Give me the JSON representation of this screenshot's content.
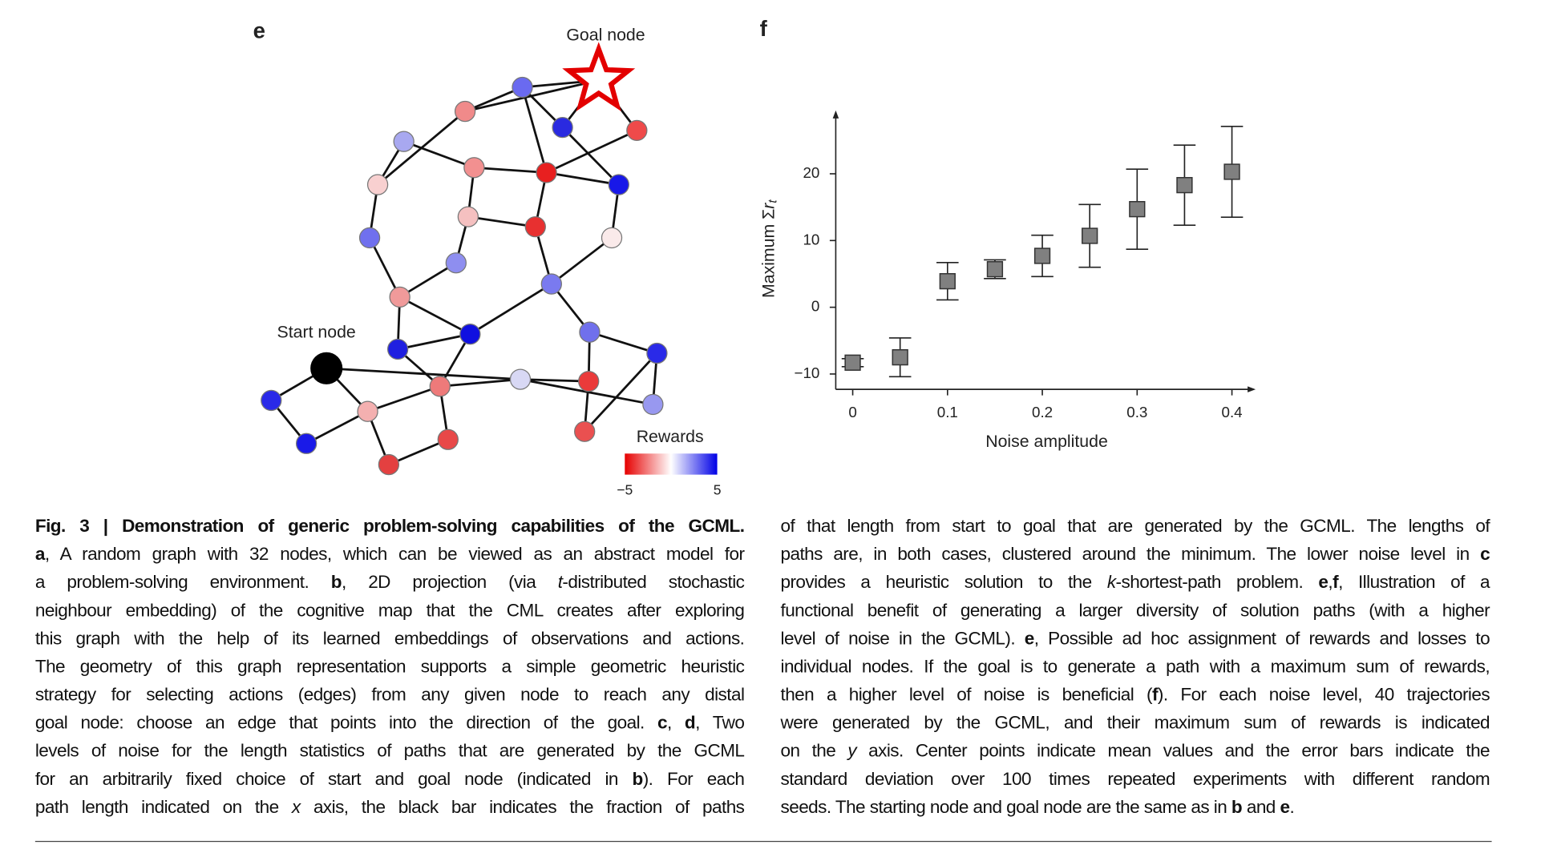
{
  "panel_e": {
    "label": "e",
    "goal_label": "Goal node",
    "start_label": "Start node",
    "colorbar": {
      "title": "Rewards",
      "clim": [
        -5,
        5
      ],
      "ticks": [
        {
          "value": -5,
          "label": "−5"
        },
        5
      ]
    }
  },
  "chart_data": {
    "type": "scatter",
    "panel_label": "f",
    "xlabel": "Noise amplitude",
    "ylabel": {
      "text": "Maximum Σ",
      "var": "r",
      "sub": "t"
    },
    "x": [
      0,
      0.05,
      0.1,
      0.15,
      0.2,
      0.25,
      0.3,
      0.35,
      0.4
    ],
    "values": [
      -8.3,
      -7.5,
      3.9,
      5.7,
      7.7,
      10.7,
      14.7,
      18.3,
      20.3
    ],
    "errors": [
      0.6,
      2.9,
      2.8,
      1.4,
      3.1,
      4.7,
      6,
      6,
      6.8
    ],
    "color": "#808080",
    "xlim": [
      -0.02,
      0.425
    ],
    "ylim": [
      -12.3,
      29.5
    ],
    "xticks": [
      0,
      0.1,
      0.2,
      0.3,
      0.4
    ],
    "yticks": [
      {
        "value": -10,
        "label": "−10"
      },
      0,
      10,
      20
    ]
  },
  "caption": {
    "col1": [
      [
        {
          "b": "Fig. 3 | Demonstration of generic problem-solving capabilities of the GCML."
        }
      ],
      [
        {
          "b": "a"
        },
        ", A random graph with 32 nodes, which can be viewed as an abstract model for"
      ],
      [
        "a problem-solving environment. ",
        {
          "b": "b"
        },
        ", 2D projection (via ",
        {
          "i": "t"
        },
        "-distributed stochastic"
      ],
      [
        "neighbour embedding) of the cognitive map that the CML creates after exploring"
      ],
      [
        "this graph with the help of its learned embeddings of observations and actions."
      ],
      [
        "The geometry of this graph representation supports a simple geometric heuristic"
      ],
      [
        "strategy for selecting actions (edges) from any given node to reach any distal"
      ],
      [
        "goal node: choose an edge that points into the direction of the goal. ",
        {
          "b": "c"
        },
        ", ",
        {
          "b": "d"
        },
        ", Two"
      ],
      [
        "levels of noise for the length statistics of paths that are generated by the GCML"
      ],
      [
        "for an arbitrarily fixed choice of start and goal node (indicated in ",
        {
          "b": "b"
        },
        "). For each"
      ],
      [
        "path length indicated on the ",
        {
          "i": "x"
        },
        " axis, the black bar indicates the fraction of paths"
      ]
    ],
    "col2": [
      [
        "of that length from start to goal that are generated by the GCML. The lengths of"
      ],
      [
        "paths are, in both cases, clustered around the minimum. The lower noise level in ",
        {
          "b": "c"
        }
      ],
      [
        "provides a heuristic solution to the ",
        {
          "i": "k"
        },
        "-shortest-path problem. ",
        {
          "b": "e"
        },
        ",",
        {
          "b": "f"
        },
        ", Illustration of a"
      ],
      [
        "functional benefit of generating a larger diversity of solution paths (with a higher"
      ],
      [
        "level of noise in the GCML). ",
        {
          "b": "e"
        },
        ", Possible ad hoc assignment of rewards and losses to"
      ],
      [
        "individual nodes. If the goal is to generate a path with a maximum sum of rewards,"
      ],
      [
        "then a higher level of noise is beneficial (",
        {
          "b": "f"
        },
        "). For each noise level, 40 trajectories"
      ],
      [
        "were generated by the GCML, and their maximum sum of rewards is indicated"
      ],
      [
        "on the ",
        {
          "i": "y"
        },
        " axis. Center points indicate mean values and the error bars indicate the"
      ],
      [
        "standard deviation over 100 times repeated experiments with different random"
      ],
      [
        "seeds. The starting node and goal node are the same as in ",
        {
          "b": "b"
        },
        " and ",
        {
          "b": "e"
        },
        "."
      ]
    ]
  }
}
